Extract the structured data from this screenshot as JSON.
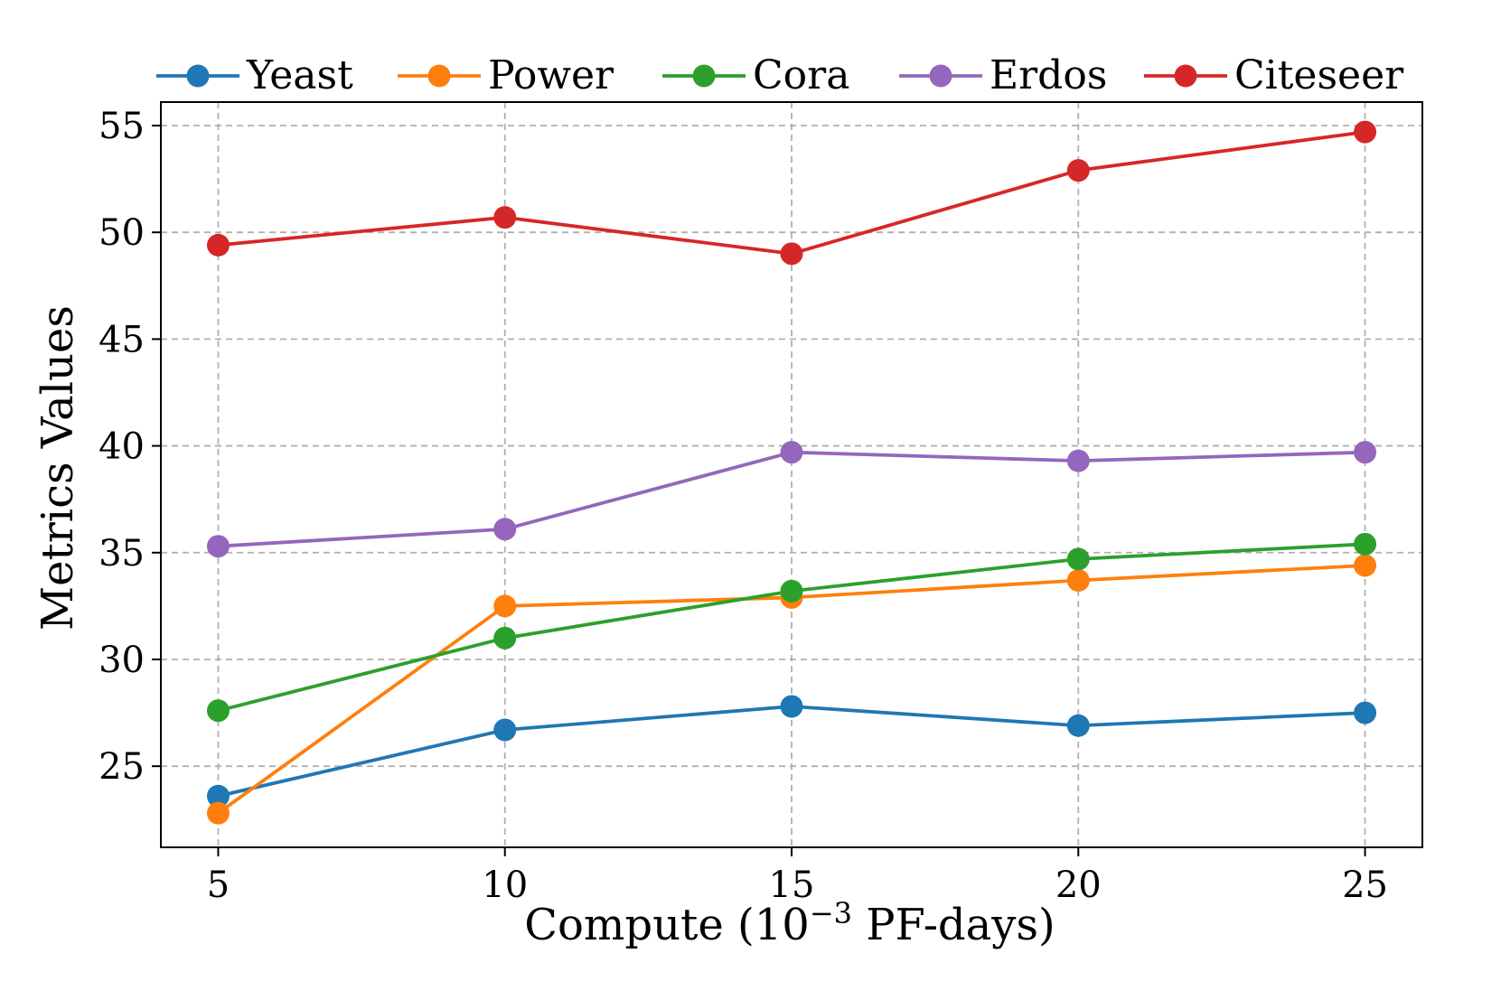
{
  "chart_data": {
    "type": "line",
    "title": "",
    "xlabel": "Compute (10",
    "xlabel_exponent": "−3",
    "xlabel_suffix": " PF-days)",
    "ylabel": "Metrics Values",
    "x": [
      5,
      10,
      15,
      20,
      25
    ],
    "xticks": [
      "5",
      "10",
      "15",
      "20",
      "25"
    ],
    "yticks": [
      "25",
      "30",
      "35",
      "40",
      "45",
      "50",
      "55"
    ],
    "ytick_values": [
      25,
      30,
      35,
      40,
      45,
      50,
      55
    ],
    "xlim": [
      4,
      26
    ],
    "ylim": [
      21.2,
      56.1
    ],
    "grid": true,
    "legend_position": "top",
    "series": [
      {
        "name": "Yeast",
        "color": "#1f77b4",
        "values": [
          23.6,
          26.7,
          27.8,
          26.9,
          27.5
        ]
      },
      {
        "name": "Power",
        "color": "#ff7f0e",
        "values": [
          22.8,
          32.5,
          32.9,
          33.7,
          34.4
        ]
      },
      {
        "name": "Cora",
        "color": "#2ca02c",
        "values": [
          27.6,
          31.0,
          33.2,
          34.7,
          35.4
        ]
      },
      {
        "name": "Erdos",
        "color": "#9467bd",
        "values": [
          35.3,
          36.1,
          39.7,
          39.3,
          39.7
        ]
      },
      {
        "name": "Citeseer",
        "color": "#d62728",
        "values": [
          49.4,
          50.7,
          49.0,
          52.9,
          54.7
        ]
      }
    ]
  }
}
